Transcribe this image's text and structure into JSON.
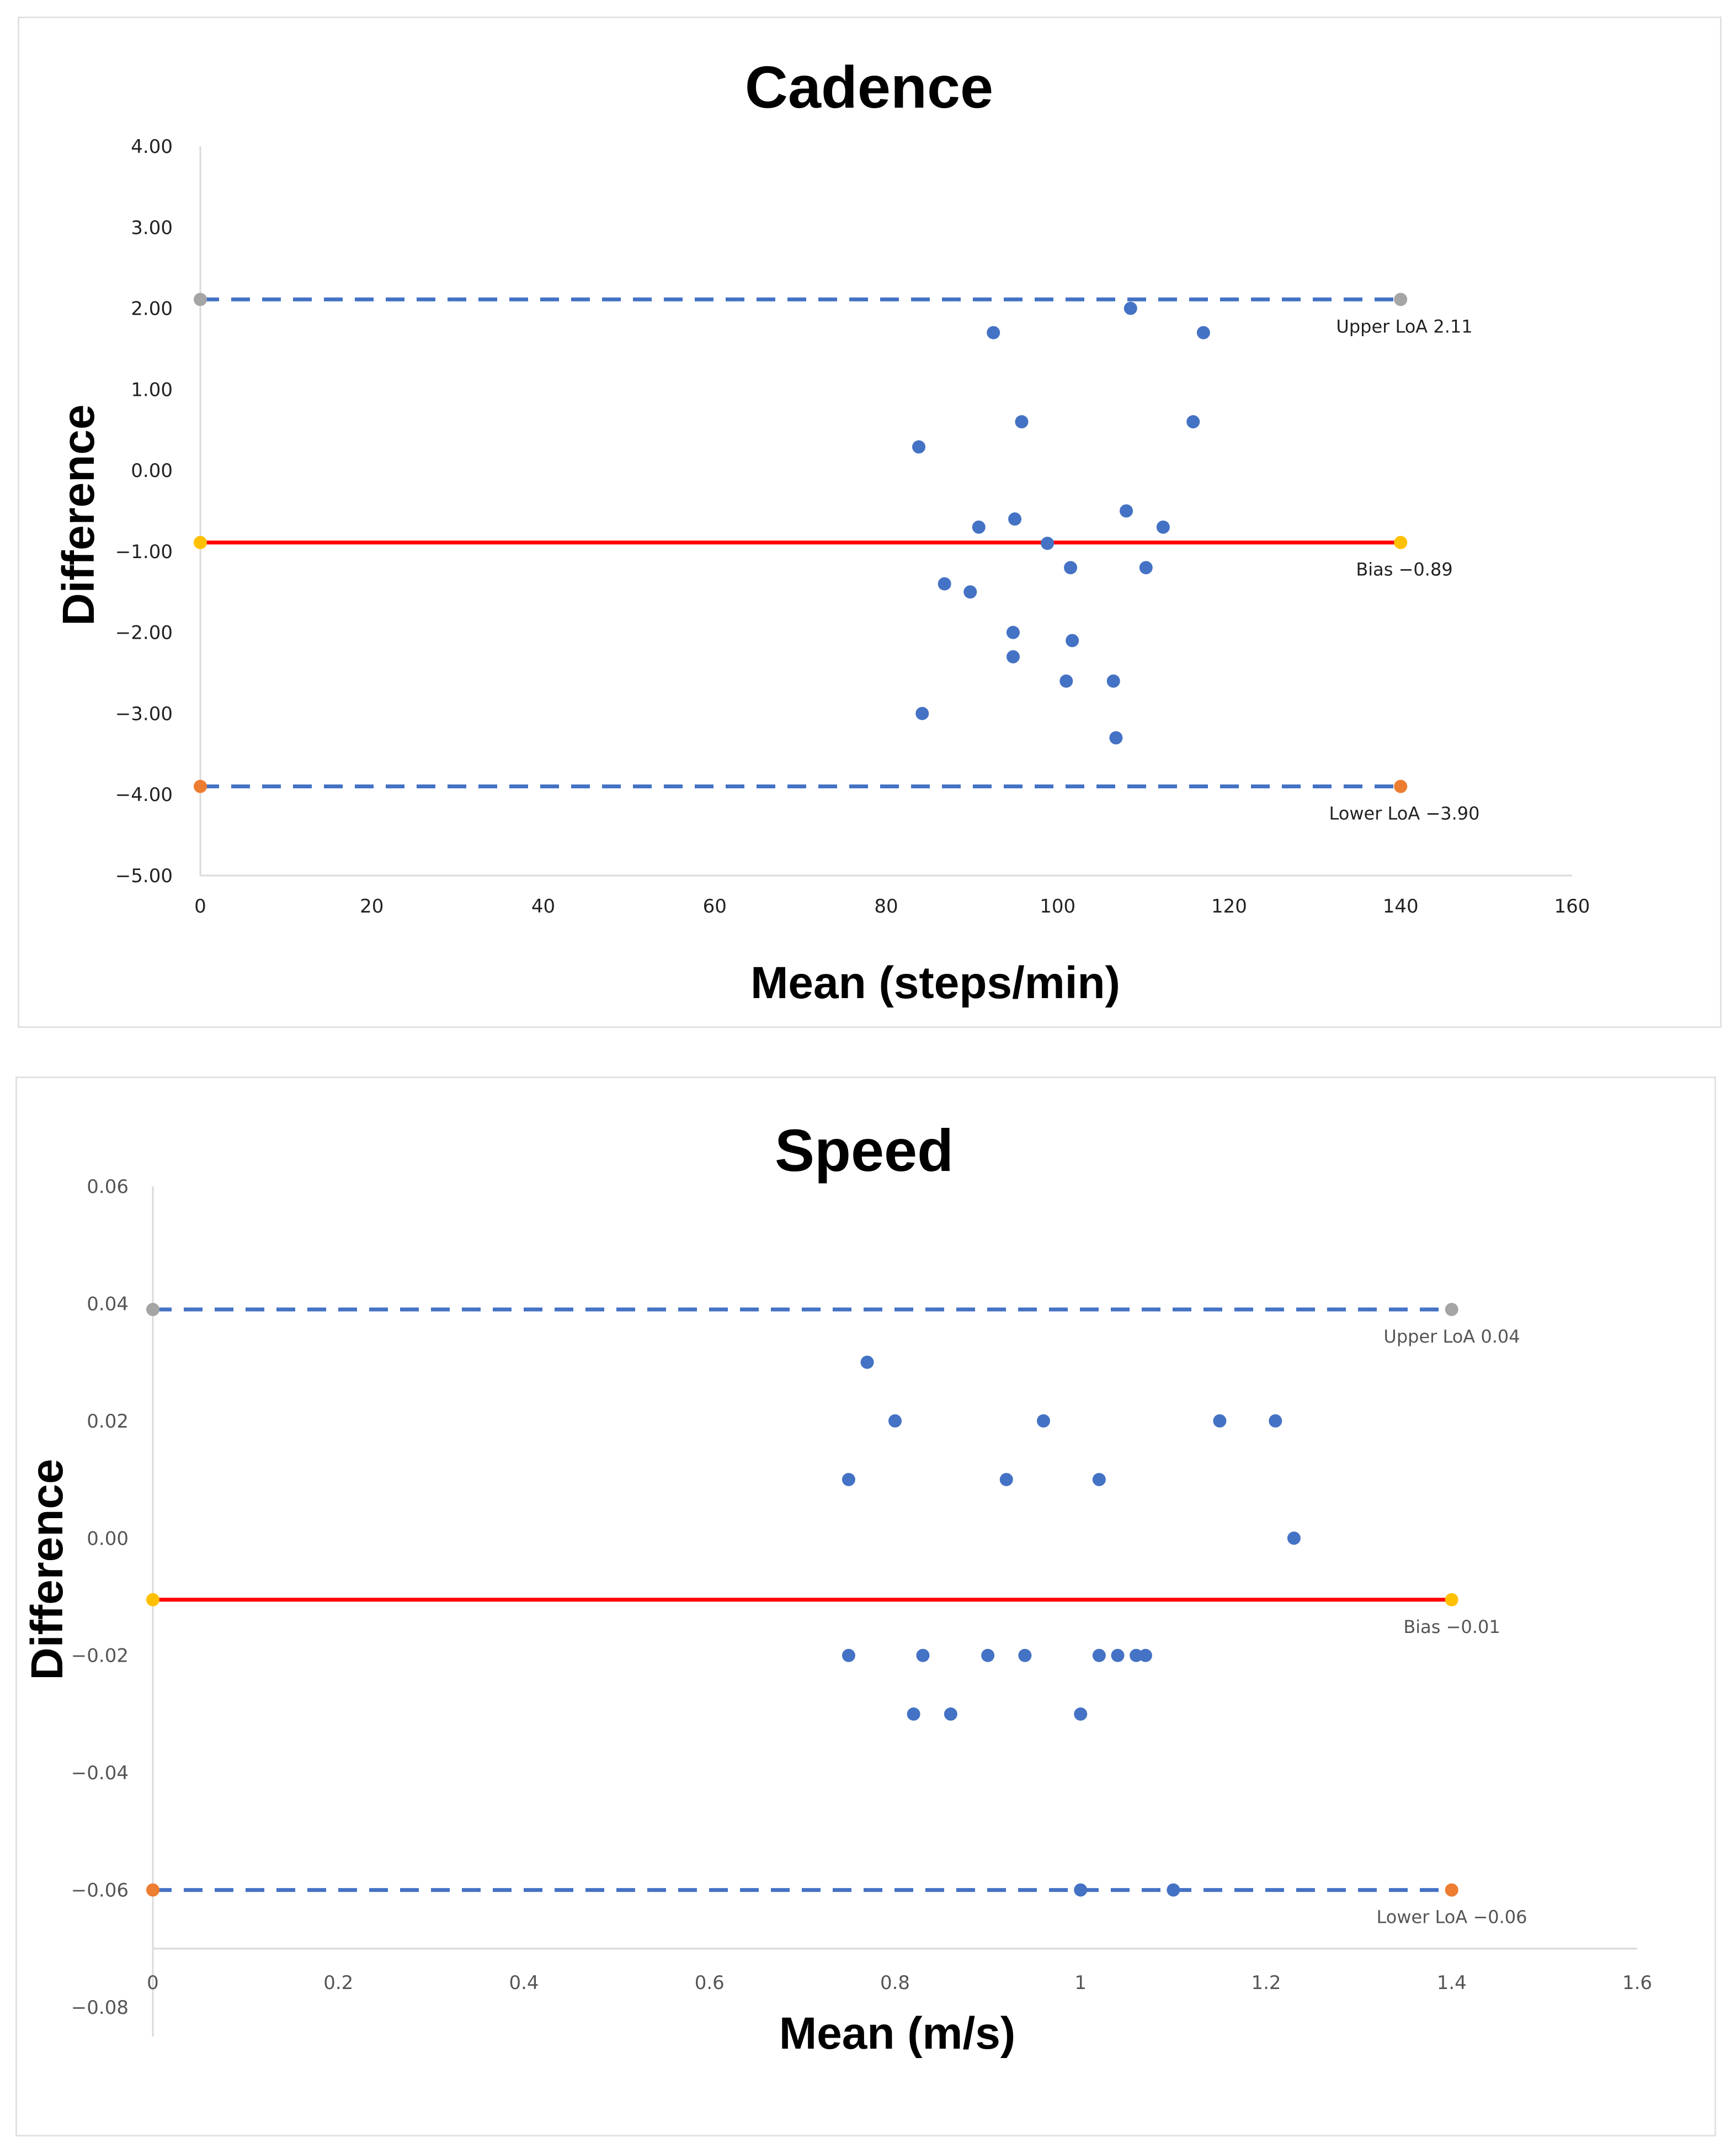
{
  "chart_data": [
    {
      "type": "scatter",
      "title": "Cadence",
      "xlabel": "Mean (steps/min)",
      "ylabel": "Difference",
      "xlim": [
        0,
        160
      ],
      "ylim": [
        -5,
        4
      ],
      "x_ticks": [
        "0",
        "20",
        "40",
        "60",
        "80",
        "100",
        "120",
        "140",
        "160"
      ],
      "y_ticks": [
        "4.00",
        "3.00",
        "2.00",
        "1.00",
        "0.00",
        "−1.00",
        "−2.00",
        "−3.00",
        "−4.00",
        "−5.00"
      ],
      "points": [
        [
          92.5,
          1.7
        ],
        [
          108.5,
          2.0
        ],
        [
          117,
          1.7
        ],
        [
          95.8,
          0.6
        ],
        [
          115.8,
          0.6
        ],
        [
          83.8,
          0.29
        ],
        [
          108,
          -0.5
        ],
        [
          95,
          -0.6
        ],
        [
          90.8,
          -0.7
        ],
        [
          112.3,
          -0.7
        ],
        [
          98.8,
          -0.9
        ],
        [
          101.5,
          -1.2
        ],
        [
          110.3,
          -1.2
        ],
        [
          86.8,
          -1.4
        ],
        [
          89.8,
          -1.5
        ],
        [
          94.8,
          -2.0
        ],
        [
          101.7,
          -2.1
        ],
        [
          94.8,
          -2.3
        ],
        [
          101,
          -2.6
        ],
        [
          106.5,
          -2.6
        ],
        [
          84.2,
          -3.0
        ],
        [
          106.8,
          -3.3
        ]
      ],
      "reference_lines": [
        {
          "name": "upper_loa",
          "y": 2.11,
          "x_start": 0,
          "x_end": 140,
          "style": "dashed",
          "color": "#4472c4",
          "marker_color": "#a5a5a5",
          "label": "Upper LoA 2.11"
        },
        {
          "name": "bias",
          "y": -0.89,
          "x_start": 0,
          "x_end": 140,
          "style": "solid",
          "color": "#ff0000",
          "marker_color": "#ffc000",
          "label": "Bias −0.89"
        },
        {
          "name": "lower_loa",
          "y": -3.9,
          "x_start": 0,
          "x_end": 140,
          "style": "dashed",
          "color": "#4472c4",
          "marker_color": "#ed7d31",
          "label": "Lower LoA −3.90"
        }
      ],
      "point_color": "#4472c4"
    },
    {
      "type": "scatter",
      "title": "Speed",
      "xlabel": "Mean (m/s)",
      "ylabel": "Difference",
      "xlim": [
        0,
        1.6
      ],
      "ylim": [
        -0.08,
        0.06
      ],
      "x_axis_at_y": -0.07,
      "x_ticks": [
        "0",
        "0.2",
        "0.4",
        "0.6",
        "0.8",
        "1",
        "1.2",
        "1.4",
        "1.6"
      ],
      "y_ticks": [
        "0.06",
        "0.04",
        "0.02",
        "0.00",
        "−0.02",
        "−0.04",
        "−0.06",
        "−0.08"
      ],
      "points": [
        [
          0.77,
          0.03
        ],
        [
          0.8,
          0.02
        ],
        [
          0.96,
          0.02
        ],
        [
          1.15,
          0.02
        ],
        [
          1.21,
          0.02
        ],
        [
          0.75,
          0.01
        ],
        [
          0.92,
          0.01
        ],
        [
          1.02,
          0.01
        ],
        [
          1.23,
          0.0
        ],
        [
          0.75,
          -0.02
        ],
        [
          0.83,
          -0.02
        ],
        [
          0.9,
          -0.02
        ],
        [
          0.94,
          -0.02
        ],
        [
          1.02,
          -0.02
        ],
        [
          1.04,
          -0.02
        ],
        [
          1.06,
          -0.02
        ],
        [
          1.07,
          -0.02
        ],
        [
          0.82,
          -0.03
        ],
        [
          0.86,
          -0.03
        ],
        [
          1.0,
          -0.03
        ],
        [
          1.0,
          -0.06
        ],
        [
          1.1,
          -0.06
        ]
      ],
      "reference_lines": [
        {
          "name": "upper_loa",
          "y": 0.039,
          "x_start": 0,
          "x_end": 1.4,
          "style": "dashed",
          "color": "#4472c4",
          "marker_color": "#a5a5a5",
          "label": "Upper LoA 0.04"
        },
        {
          "name": "bias",
          "y": -0.0105,
          "x_start": 0,
          "x_end": 1.4,
          "style": "solid",
          "color": "#ff0000",
          "marker_color": "#ffc000",
          "label": "Bias −0.01"
        },
        {
          "name": "lower_loa",
          "y": -0.06,
          "x_start": 0,
          "x_end": 1.4,
          "style": "dashed",
          "color": "#4472c4",
          "marker_color": "#ed7d31",
          "label": "Lower LoA −0.06"
        }
      ],
      "point_color": "#4472c4"
    }
  ]
}
